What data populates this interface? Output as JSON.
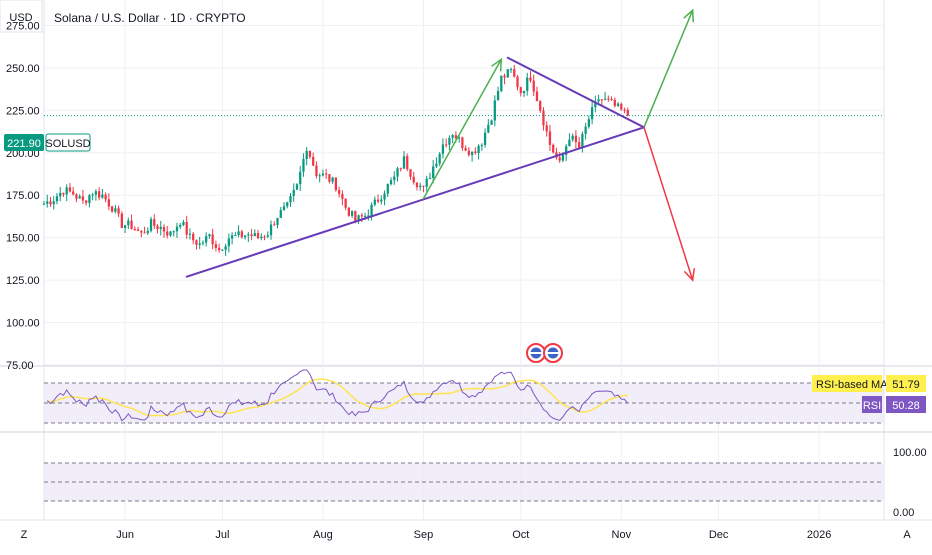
{
  "header": {
    "title": "Solana / U.S. Dollar · 1D · CRYPTO",
    "currency_label": "USD",
    "bottom_left_label": "Z",
    "bottom_right_label": "A"
  },
  "colors": {
    "bull": "#089981",
    "bear": "#f23645",
    "trendline": "#673ab7",
    "arrow_up": "#4caf50",
    "arrow_down": "#f23645",
    "rsi_line": "#7e57c2",
    "rsi_ma_line": "#ffe352",
    "price_line": "#089981",
    "rsi_band": "#ede7f6"
  },
  "chart_data": [
    {
      "type": "candlestick",
      "title": "Solana / U.S. Dollar · 1D · CRYPTO",
      "symbol": "SOLUSD",
      "last_price": "221.90",
      "y_ticks": [
        "275.00",
        "250.00",
        "225.00",
        "200.00",
        "175.00",
        "150.00",
        "125.00",
        "100.00",
        "75.00"
      ],
      "x_ticks": [
        "Jun",
        "Jul",
        "Aug",
        "Sep",
        "Oct",
        "Nov",
        "Dec",
        "2026"
      ],
      "ylim": [
        75,
        290
      ],
      "x_range_days": [
        "2025-05-07",
        "2026-01-21"
      ],
      "grid": true,
      "close_series": [
        {
          "d": "2025-05-07",
          "c": 170
        },
        {
          "d": "2025-05-10",
          "c": 173
        },
        {
          "d": "2025-05-13",
          "c": 178
        },
        {
          "d": "2025-05-16",
          "c": 176
        },
        {
          "d": "2025-05-19",
          "c": 171
        },
        {
          "d": "2025-05-22",
          "c": 177
        },
        {
          "d": "2025-05-25",
          "c": 175
        },
        {
          "d": "2025-05-28",
          "c": 168
        },
        {
          "d": "2025-05-31",
          "c": 158
        },
        {
          "d": "2025-06-03",
          "c": 157
        },
        {
          "d": "2025-06-06",
          "c": 152
        },
        {
          "d": "2025-06-09",
          "c": 158
        },
        {
          "d": "2025-06-12",
          "c": 156
        },
        {
          "d": "2025-06-15",
          "c": 152
        },
        {
          "d": "2025-06-18",
          "c": 160
        },
        {
          "d": "2025-06-21",
          "c": 150
        },
        {
          "d": "2025-06-24",
          "c": 146
        },
        {
          "d": "2025-06-27",
          "c": 151
        },
        {
          "d": "2025-06-30",
          "c": 143
        },
        {
          "d": "2025-07-03",
          "c": 150
        },
        {
          "d": "2025-07-06",
          "c": 151
        },
        {
          "d": "2025-07-09",
          "c": 152
        },
        {
          "d": "2025-07-12",
          "c": 150
        },
        {
          "d": "2025-07-15",
          "c": 153
        },
        {
          "d": "2025-07-18",
          "c": 163
        },
        {
          "d": "2025-07-21",
          "c": 168
        },
        {
          "d": "2025-07-24",
          "c": 180
        },
        {
          "d": "2025-07-27",
          "c": 204
        },
        {
          "d": "2025-07-30",
          "c": 188
        },
        {
          "d": "2025-08-02",
          "c": 186
        },
        {
          "d": "2025-08-05",
          "c": 181
        },
        {
          "d": "2025-08-08",
          "c": 168
        },
        {
          "d": "2025-08-11",
          "c": 160
        },
        {
          "d": "2025-08-14",
          "c": 163
        },
        {
          "d": "2025-08-17",
          "c": 170
        },
        {
          "d": "2025-08-20",
          "c": 178
        },
        {
          "d": "2025-08-23",
          "c": 185
        },
        {
          "d": "2025-08-26",
          "c": 196
        },
        {
          "d": "2025-08-29",
          "c": 185
        },
        {
          "d": "2025-09-01",
          "c": 178
        },
        {
          "d": "2025-09-04",
          "c": 192
        },
        {
          "d": "2025-09-07",
          "c": 205
        },
        {
          "d": "2025-09-10",
          "c": 212
        },
        {
          "d": "2025-09-13",
          "c": 205
        },
        {
          "d": "2025-09-16",
          "c": 200
        },
        {
          "d": "2025-09-19",
          "c": 207
        },
        {
          "d": "2025-09-22",
          "c": 222
        },
        {
          "d": "2025-09-25",
          "c": 244
        },
        {
          "d": "2025-09-28",
          "c": 248
        },
        {
          "d": "2025-10-01",
          "c": 236
        },
        {
          "d": "2025-10-04",
          "c": 245
        },
        {
          "d": "2025-10-07",
          "c": 226
        },
        {
          "d": "2025-10-10",
          "c": 205
        },
        {
          "d": "2025-10-13",
          "c": 193
        },
        {
          "d": "2025-10-16",
          "c": 210
        },
        {
          "d": "2025-10-19",
          "c": 203
        },
        {
          "d": "2025-10-22",
          "c": 220
        },
        {
          "d": "2025-10-25",
          "c": 232
        },
        {
          "d": "2025-10-28",
          "c": 230
        },
        {
          "d": "2025-10-31",
          "c": 226
        },
        {
          "d": "2025-11-03",
          "c": 221.9
        }
      ],
      "trendlines": [
        {
          "name": "lower-trendline",
          "from": {
            "d": "2025-06-20",
            "v": 127
          },
          "to": {
            "d": "2025-11-08",
            "v": 215
          }
        },
        {
          "name": "upper-trendline",
          "from": {
            "d": "2025-09-27",
            "v": 256
          },
          "to": {
            "d": "2025-11-08",
            "v": 215
          }
        },
        {
          "name": "up-arrow",
          "from": {
            "d": "2025-11-08",
            "v": 215
          },
          "to": {
            "d": "2025-11-23",
            "v": 284
          }
        },
        {
          "name": "down-arrow",
          "from": {
            "d": "2025-11-08",
            "v": 215
          },
          "to": {
            "d": "2025-11-23",
            "v": 125
          }
        },
        {
          "name": "rally-arrow",
          "from": {
            "d": "2025-09-01",
            "v": 173
          },
          "to": {
            "d": "2025-09-25",
            "v": 255
          }
        }
      ]
    },
    {
      "type": "line",
      "title": "RSI",
      "series": [
        {
          "name": "RSI-based MA",
          "last_value": "51.79"
        },
        {
          "name": "RSI",
          "last_value": "50.28"
        }
      ],
      "y_ticks": [
        "100.00",
        "0.00"
      ],
      "band": [
        30,
        70
      ]
    }
  ]
}
